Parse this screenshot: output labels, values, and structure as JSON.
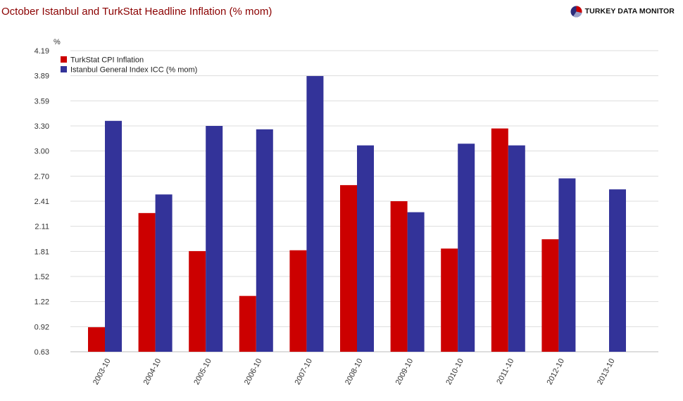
{
  "header": {
    "title": "October Istanbul and TurkStat Headline Inflation (% mom)",
    "brand": "TURKEY DATA MONITOR"
  },
  "chart_data": {
    "type": "bar",
    "title": "October Istanbul and TurkStat Headline Inflation (% mom)",
    "ylabel": "%",
    "xlabel": "",
    "ylim": [
      0.63,
      4.19
    ],
    "yticks": [
      "0.63",
      "0.92",
      "1.22",
      "1.52",
      "1.81",
      "2.11",
      "2.41",
      "2.70",
      "3.00",
      "3.30",
      "3.59",
      "3.89",
      "4.19"
    ],
    "grid": true,
    "legend_position": "top-left",
    "categories": [
      "2003-10",
      "2004-10",
      "2005-10",
      "2006-10",
      "2007-10",
      "2008-10",
      "2009-10",
      "2010-10",
      "2011-10",
      "2012-10",
      "2013-10"
    ],
    "series": [
      {
        "name": "TurkStat CPI Inflation",
        "color": "#cc0000",
        "values": [
          0.92,
          2.27,
          1.82,
          1.29,
          1.83,
          2.6,
          2.41,
          1.85,
          3.27,
          1.96,
          null
        ]
      },
      {
        "name": "Istanbul General Index ICC (% mom)",
        "color": "#333399",
        "values": [
          3.36,
          2.49,
          3.3,
          3.26,
          3.89,
          3.07,
          2.28,
          3.09,
          3.07,
          2.68,
          2.55
        ]
      }
    ]
  }
}
